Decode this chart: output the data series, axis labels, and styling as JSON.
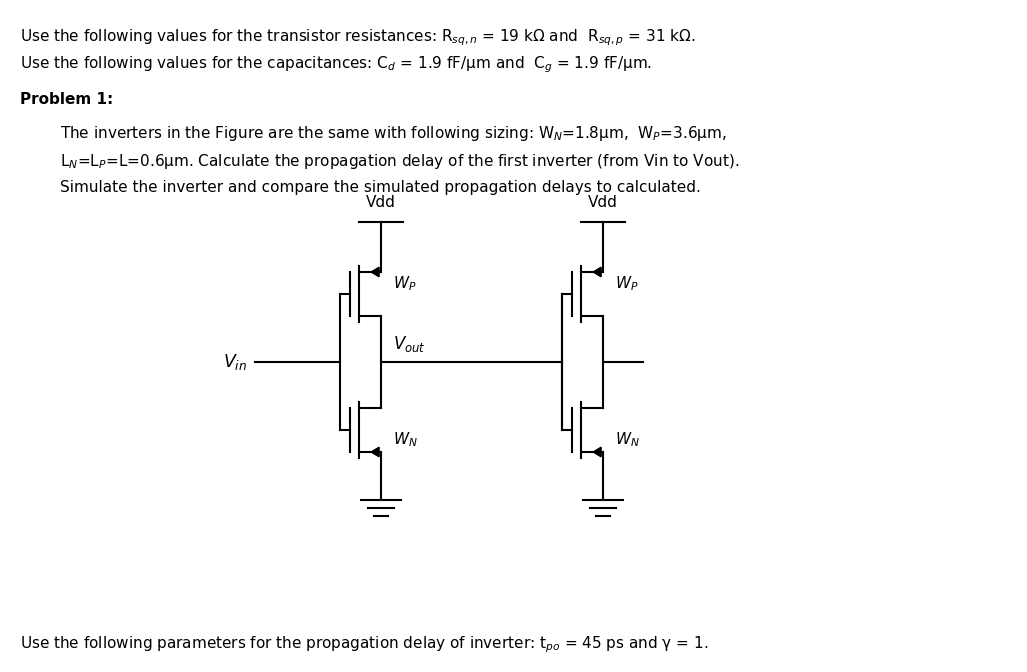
{
  "bg_color": "#ffffff",
  "text_color": "#000000",
  "line_color": "#000000",
  "line_width": 1.5,
  "fig_width": 10.27,
  "fig_height": 6.72,
  "dpi": 100,
  "header_line1": "Use the following values for the transistor resistances: R$_{sq,n}$ = 19 kΩ and  R$_{sq,p}$ = 31 kΩ.",
  "header_line2": "Use the following values for the capacitances: C$_{d}$ = 1.9 fF/μm and  C$_{g}$ = 1.9 fF/μm.",
  "problem_label": "Problem 1:",
  "problem_text_line1": "The inverters in the Figure are the same with following sizing: W$_{N}$=1.8μm,  W$_{P}$=3.6μm,",
  "problem_text_line2": "L$_{N}$=L$_{P}$=L=0.6μm. Calculate the propagation delay of the first inverter (from Vin to Vout).",
  "problem_text_line3": "Simulate the inverter and compare the simulated propagation delays to calculated.",
  "footer_text": "Use the following parameters for the propagation delay of inverter: t$_{po}$ = 45 ps and γ = 1.",
  "font_size": 11.0
}
